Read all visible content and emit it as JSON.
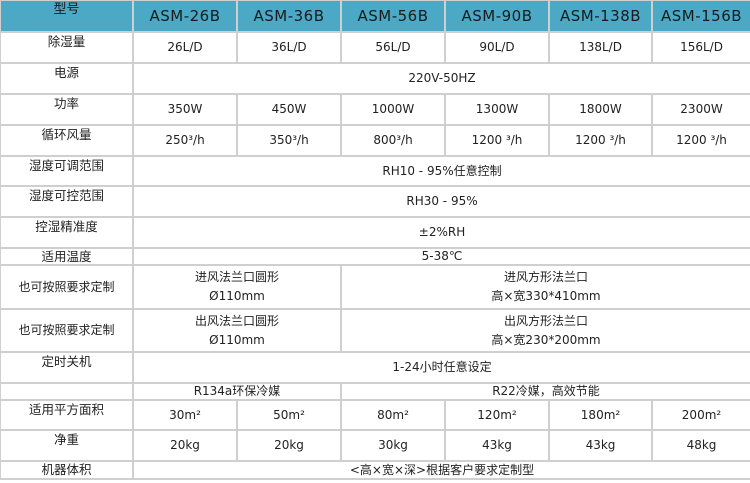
{
  "header": {
    "label": "型号",
    "models": [
      "ASM-26B",
      "ASM-36B",
      "ASM-56B",
      "ASM-90B",
      "ASM-138B",
      "ASM-156B"
    ]
  },
  "rows": {
    "capacity": {
      "label": "除湿量",
      "values": [
        "26L/D",
        "36L/D",
        "56L/D",
        "90L/D",
        "138L/D",
        "156L/D"
      ]
    },
    "power_supply": {
      "label": "电源",
      "value": "220V-50HZ"
    },
    "power": {
      "label": "功率",
      "values": [
        "350W",
        "450W",
        "1000W",
        "1300W",
        "1800W",
        "2300W"
      ]
    },
    "airflow": {
      "label": "循环风量",
      "values": [
        "250³/h",
        "350³/h",
        "800³/h",
        "1200 ³/h",
        "1200 ³/h",
        "1200 ³/h"
      ]
    },
    "adjust_range": {
      "label": "湿度可调范围",
      "value": "RH10 - 95%任意控制"
    },
    "control_range": {
      "label": "湿度可控范围",
      "value": "RH30 - 95%"
    },
    "accuracy": {
      "label": "控湿精准度",
      "value": "±2%RH"
    },
    "temperature": {
      "label": "适用温度",
      "value": "5-38℃"
    },
    "inlet": {
      "label": "也可按照要求定制",
      "small_1": "进风法兰口圆形",
      "small_2": "Ø110mm",
      "large_1": "进风方形法兰口",
      "large_2": "高×宽330*410mm"
    },
    "outlet": {
      "label": "也可按照要求定制",
      "small_1": "出风法兰口圆形",
      "small_2": "Ø110mm",
      "large_1": "出风方形法兰口",
      "large_2": "高×宽230*200mm"
    },
    "timer": {
      "label": "定时关机",
      "value": "1-24小时任意设定"
    },
    "refrigerant": {
      "label": "",
      "small": "R134a环保冷媒",
      "large": "R22冷媒，高效节能"
    },
    "area": {
      "label": "适用平方面积",
      "values": [
        "30m²",
        "50m²",
        "80m²",
        "120m²",
        "180m²",
        "200m²"
      ]
    },
    "weight": {
      "label": "净重",
      "values": [
        "20kg",
        "20kg",
        "30kg",
        "43kg",
        "43kg",
        "48kg"
      ]
    },
    "size": {
      "label": "机器体积",
      "value": "<高×宽×深>根据客户要求定制型"
    }
  }
}
